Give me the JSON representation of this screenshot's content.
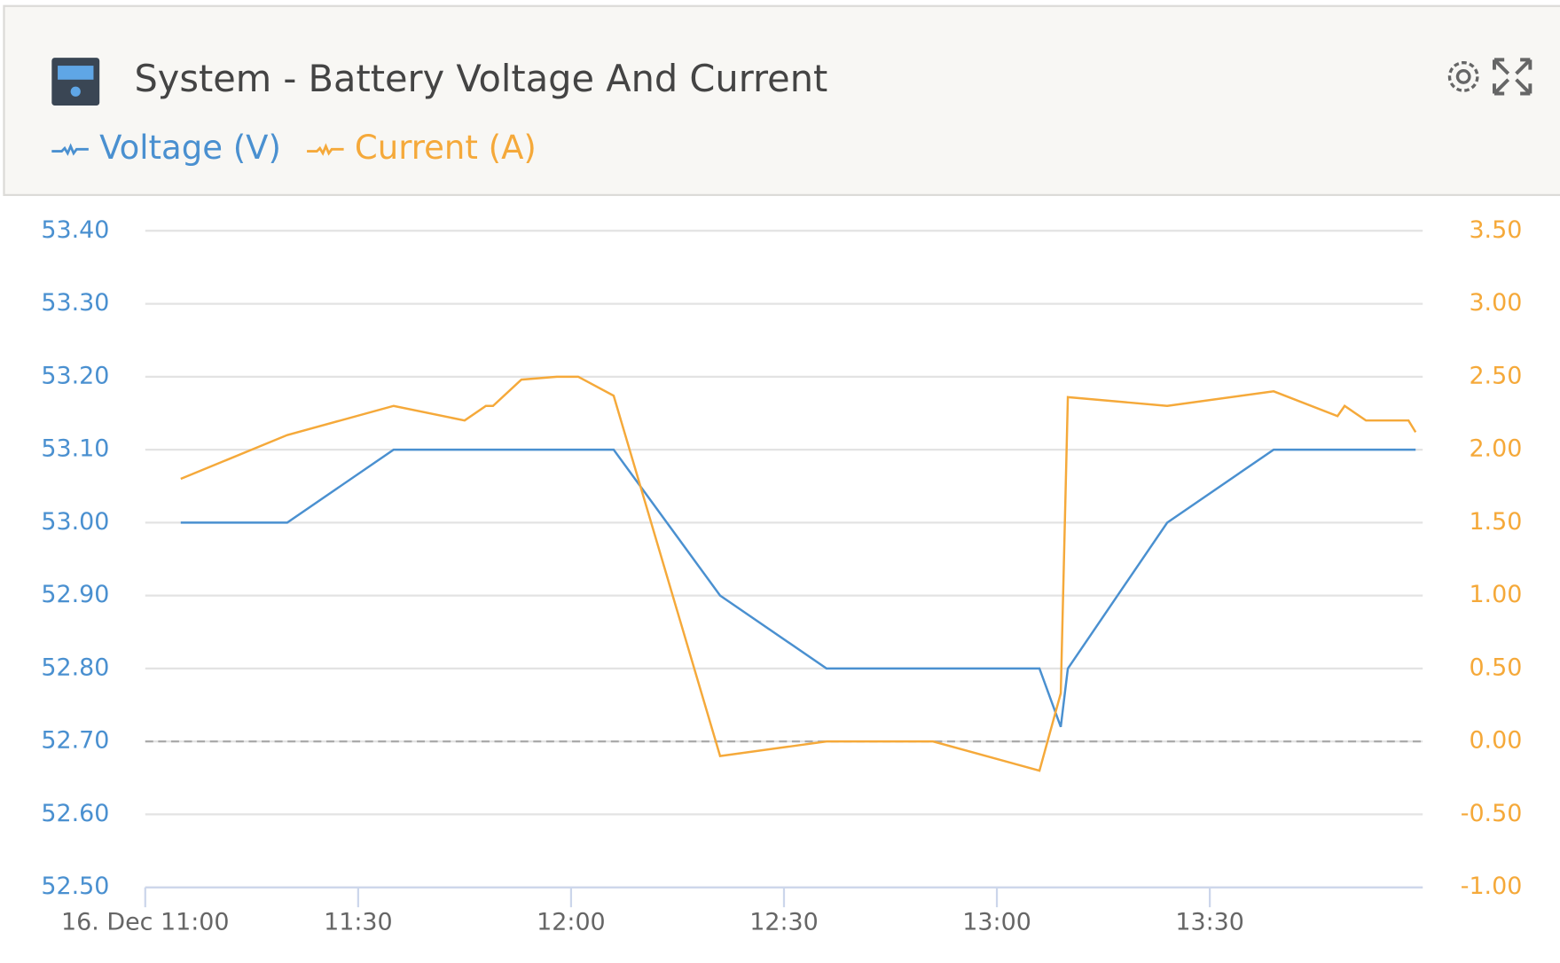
{
  "chart_data": {
    "type": "line",
    "title": "System - Battery Voltage And Current",
    "xlim": [
      "11:00",
      "14:00"
    ],
    "xticks": [
      {
        "value": "11:00",
        "label": "16. Dec 11:00"
      },
      "11:30",
      "12:00",
      "12:30",
      "13:00",
      "13:30"
    ],
    "ylim": [
      52.5,
      53.4
    ],
    "yticks": [
      {
        "value": 53.4,
        "label": "53.40"
      },
      {
        "value": 53.3,
        "label": "53.30"
      },
      {
        "value": 53.2,
        "label": "53.20"
      },
      {
        "value": 53.1,
        "label": "53.10"
      },
      {
        "value": 53.0,
        "label": "53.00"
      },
      {
        "value": 52.9,
        "label": "52.90"
      },
      {
        "value": 52.8,
        "label": "52.80"
      },
      {
        "value": 52.7,
        "label": "52.70"
      },
      {
        "value": 52.6,
        "label": "52.60"
      },
      {
        "value": 52.5,
        "label": "52.50"
      }
    ],
    "y2lim": [
      -1,
      3.5
    ],
    "y2ticks": [
      {
        "value": 3.5,
        "label": "3.50"
      },
      {
        "value": 3,
        "label": "3.00"
      },
      {
        "value": 2.5,
        "label": "2.50"
      },
      {
        "value": 2,
        "label": "2.00"
      },
      {
        "value": 1.5,
        "label": "1.50"
      },
      {
        "value": 1,
        "label": "1.00"
      },
      {
        "value": 0.5,
        "label": "0.50"
      },
      {
        "value": 0,
        "label": "0.00"
      },
      {
        "value": -0.5,
        "label": "-0.50"
      },
      {
        "value": -1,
        "label": "-1.00"
      }
    ],
    "grid": true,
    "series": [
      {
        "name": "Voltage (V)",
        "color": "#4a90d0",
        "axis": "y",
        "x": [
          "11:05",
          "11:20",
          "11:35",
          "12:06",
          "12:21",
          "12:36",
          "13:06",
          "13:09",
          "13:10",
          "13:24",
          "13:39",
          "13:59"
        ],
        "values": [
          53.0,
          53.0,
          53.1,
          53.1,
          52.9,
          52.8,
          52.8,
          52.72,
          52.8,
          53.0,
          53.1,
          53.1
        ]
      },
      {
        "name": "Current (A)",
        "color": "#f5a93a",
        "axis": "y2",
        "x": [
          "11:05",
          "11:20",
          "11:35",
          "11:45",
          "11:48",
          "11:49",
          "11:53",
          "11:58",
          "12:01",
          "12:06",
          "12:21",
          "12:36",
          "12:51",
          "13:06",
          "13:09",
          "13:10",
          "13:24",
          "13:39",
          "13:48",
          "13:49",
          "13:52",
          "13:58",
          "13:59"
        ],
        "values": [
          1.8,
          2.1,
          2.3,
          2.2,
          2.3,
          2.3,
          2.48,
          2.5,
          2.5,
          2.37,
          -0.1,
          0,
          0,
          -0.2,
          0.33,
          2.36,
          2.3,
          2.4,
          2.23,
          2.3,
          2.2,
          2.2,
          2.12
        ]
      }
    ]
  }
}
